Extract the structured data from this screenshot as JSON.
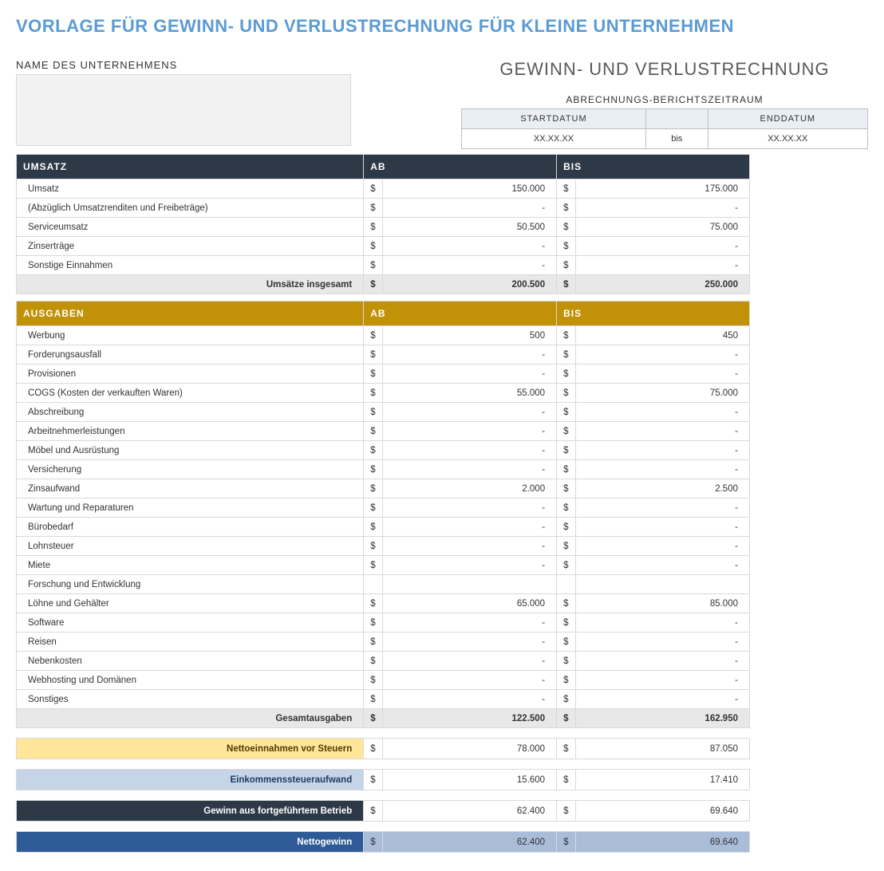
{
  "title": "VORLAGE FÜR GEWINN- UND VERLUSTRECHNUNG FÜR KLEINE UNTERNEHMEN",
  "subtitle": "GEWINN- UND VERLUSTRECHNUNG",
  "company_name_label": "NAME DES UNTERNEHMENS",
  "period_label": "ABRECHNUNGS-BERICHTSZEITRAUM",
  "period_headers": {
    "start": "STARTDATUM",
    "end": "ENDDATUM"
  },
  "period_values": {
    "start": "XX.XX.XX",
    "mid": "bis",
    "end": "XX.XX.XX"
  },
  "column_headers": {
    "ab": "AB",
    "bis": "BIS"
  },
  "currency_symbol": "$",
  "empty_value": "-",
  "colors": {
    "umsatz_header_bg": "#2e3947",
    "ausgaben_header_bg": "#c19108",
    "total_bg": "#e8e8e8",
    "net_before_tax_bg": "#ffe699",
    "tax_bg": "#c6d4e8",
    "continuing_bg": "#2e3947",
    "netprofit_label_bg": "#2e5b97",
    "netprofit_val_bg": "#a9bdd9"
  },
  "umsatz": {
    "section_label": "UMSATZ",
    "rows": [
      {
        "label": "Umsatz",
        "ab": "150.000",
        "bis": "175.000"
      },
      {
        "label": "(Abzüglich Umsatzrenditen und Freibeträge)",
        "ab": "-",
        "bis": "-"
      },
      {
        "label": "Serviceumsatz",
        "ab": "50.500",
        "bis": "75.000"
      },
      {
        "label": "Zinserträge",
        "ab": "-",
        "bis": "-"
      },
      {
        "label": "Sonstige Einnahmen",
        "ab": "-",
        "bis": "-"
      }
    ],
    "total_label": "Umsätze insgesamt",
    "total": {
      "ab": "200.500",
      "bis": "250.000"
    }
  },
  "ausgaben": {
    "section_label": "AUSGABEN",
    "rows": [
      {
        "label": "Werbung",
        "ab": "500",
        "bis": "450"
      },
      {
        "label": "Forderungsausfall",
        "ab": "-",
        "bis": "-"
      },
      {
        "label": "Provisionen",
        "ab": "-",
        "bis": "-"
      },
      {
        "label": "COGS (Kosten der verkauften Waren)",
        "ab": "55.000",
        "bis": "75.000"
      },
      {
        "label": "Abschreibung",
        "ab": "-",
        "bis": "-"
      },
      {
        "label": "Arbeitnehmerleistungen",
        "ab": "-",
        "bis": "-"
      },
      {
        "label": "Möbel und Ausrüstung",
        "ab": "-",
        "bis": "-"
      },
      {
        "label": "Versicherung",
        "ab": "-",
        "bis": "-"
      },
      {
        "label": "Zinsaufwand",
        "ab": "2.000",
        "bis": "2.500"
      },
      {
        "label": "Wartung und Reparaturen",
        "ab": "-",
        "bis": "-"
      },
      {
        "label": "Bürobedarf",
        "ab": "-",
        "bis": "-"
      },
      {
        "label": "Lohnsteuer",
        "ab": "-",
        "bis": "-"
      },
      {
        "label": "Miete",
        "ab": "-",
        "bis": "-"
      },
      {
        "label": "Forschung und Entwicklung",
        "ab": "",
        "bis": ""
      },
      {
        "label": "Löhne und Gehälter",
        "ab": "65.000",
        "bis": "85.000"
      },
      {
        "label": "Software",
        "ab": "-",
        "bis": "-"
      },
      {
        "label": "Reisen",
        "ab": "-",
        "bis": "-"
      },
      {
        "label": "Nebenkosten",
        "ab": "-",
        "bis": "-"
      },
      {
        "label": "Webhosting und Domänen",
        "ab": "-",
        "bis": "-"
      },
      {
        "label": "Sonstiges",
        "ab": "-",
        "bis": "-"
      }
    ],
    "total_label": "Gesamtausgaben",
    "total": {
      "ab": "122.500",
      "bis": "162.950"
    }
  },
  "summary": [
    {
      "key": "net_before_tax",
      "label": "Nettoeinnahmen vor Steuern",
      "ab": "78.000",
      "bis": "87.050",
      "label_bg": "#ffe699",
      "label_color": "#4f3b00",
      "val_bg": "#ffffff"
    },
    {
      "key": "tax",
      "label": "Einkommenssteueraufwand",
      "ab": "15.600",
      "bis": "17.410",
      "label_bg": "#c6d4e8",
      "label_color": "#1f3b63",
      "val_bg": "#ffffff"
    },
    {
      "key": "continuing",
      "label": "Gewinn aus fortgeführtem Betrieb",
      "ab": "62.400",
      "bis": "69.640",
      "label_bg": "#2e3947",
      "label_color": "#ffffff",
      "val_bg": "#ffffff"
    },
    {
      "key": "netprofit",
      "label": "Nettogewinn",
      "ab": "62.400",
      "bis": "69.640",
      "label_bg": "#2e5b97",
      "label_color": "#ffffff",
      "val_bg": "#a9bdd9"
    }
  ]
}
